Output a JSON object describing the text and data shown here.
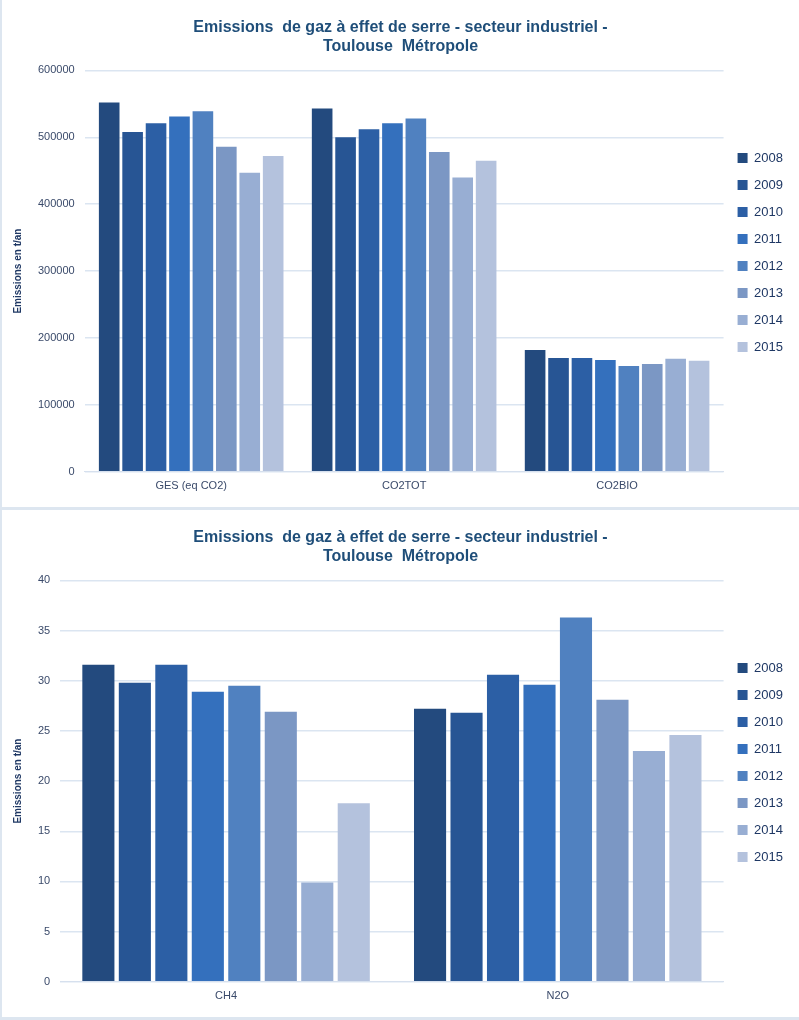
{
  "chart_data": [
    {
      "type": "bar",
      "title": "Emissions  de gaz à effet de serre - secteur industriel -\nToulouse  Métropole",
      "ylabel": "Emissions en t/an",
      "categories": [
        "GES (eq CO2)",
        "CO2TOT",
        "CO2BIO"
      ],
      "ylim": [
        0,
        600000
      ],
      "yticks": [
        0,
        100000,
        200000,
        300000,
        400000,
        500000,
        600000
      ],
      "grid": "y",
      "legend": "right",
      "series": [
        {
          "name": "2008",
          "color": "#234a7e",
          "values": [
            552000,
            543000,
            182000
          ]
        },
        {
          "name": "2009",
          "color": "#275594",
          "values": [
            508000,
            500000,
            170000
          ]
        },
        {
          "name": "2010",
          "color": "#2c5fa5",
          "values": [
            521000,
            512000,
            170000
          ]
        },
        {
          "name": "2011",
          "color": "#3470bd",
          "values": [
            531000,
            521000,
            167000
          ]
        },
        {
          "name": "2012",
          "color": "#5081c0",
          "values": [
            539000,
            528000,
            158000
          ]
        },
        {
          "name": "2013",
          "color": "#7b97c4",
          "values": [
            486000,
            478000,
            161000
          ]
        },
        {
          "name": "2014",
          "color": "#98aed3",
          "values": [
            447000,
            440000,
            169000
          ]
        },
        {
          "name": "2015",
          "color": "#b4c2dd",
          "values": [
            472000,
            465000,
            166000
          ]
        }
      ]
    },
    {
      "type": "bar",
      "title": "Emissions  de gaz à effet de serre - secteur industriel -\nToulouse  Métropole",
      "ylabel": "Emissions en t/an",
      "categories": [
        "CH4",
        "N2O"
      ],
      "ylim": [
        0,
        40
      ],
      "yticks": [
        0,
        5,
        10,
        15,
        20,
        25,
        30,
        35,
        40
      ],
      "grid": "y",
      "legend": "right",
      "series": [
        {
          "name": "2008",
          "color": "#234a7e",
          "values": [
            31.6,
            27.2
          ]
        },
        {
          "name": "2009",
          "color": "#275594",
          "values": [
            29.8,
            26.8
          ]
        },
        {
          "name": "2010",
          "color": "#2c5fa5",
          "values": [
            31.6,
            30.6
          ]
        },
        {
          "name": "2011",
          "color": "#3470bd",
          "values": [
            28.9,
            29.6
          ]
        },
        {
          "name": "2012",
          "color": "#5081c0",
          "values": [
            29.5,
            36.3
          ]
        },
        {
          "name": "2013",
          "color": "#7b97c4",
          "values": [
            26.9,
            28.1
          ]
        },
        {
          "name": "2014",
          "color": "#98aed3",
          "values": [
            9.9,
            23.0
          ]
        },
        {
          "name": "2015",
          "color": "#b4c2dd",
          "values": [
            17.8,
            24.6
          ]
        }
      ]
    }
  ]
}
